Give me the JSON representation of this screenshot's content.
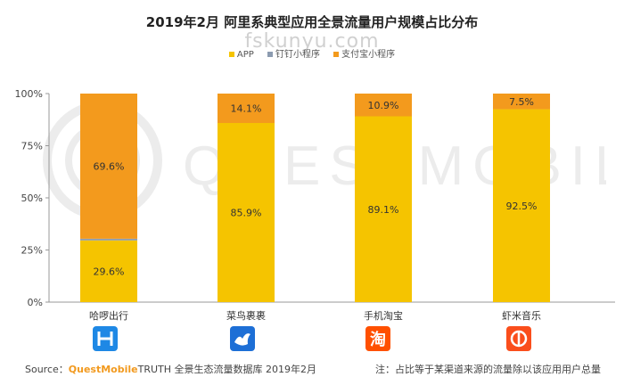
{
  "title": "2019年2月 阿里系典型应用全景流量用户规模占比分布",
  "watermark": "fskunyu.com",
  "background_logo_text": "QUESTMOBILE",
  "legend": [
    {
      "label": "APP",
      "color": "#f5c400"
    },
    {
      "label": "钉钉小程序",
      "color": "#8c9bb0"
    },
    {
      "label": "支付宝小程序",
      "color": "#f39a1d"
    }
  ],
  "chart_data": {
    "type": "bar",
    "stacked": true,
    "categories": [
      "哈啰出行",
      "菜鸟裹裹",
      "手机淘宝",
      "虾米音乐"
    ],
    "series": [
      {
        "name": "APP",
        "values": [
          29.6,
          85.9,
          89.1,
          92.5
        ],
        "color": "#f5c400"
      },
      {
        "name": "钉钉小程序",
        "values": [
          0.8,
          0,
          0,
          0
        ],
        "color": "#8c9bb0"
      },
      {
        "name": "支付宝小程序",
        "values": [
          69.6,
          14.1,
          10.9,
          7.5
        ],
        "color": "#f39a1d"
      }
    ],
    "data_labels": [
      {
        "app": "29.6%",
        "alipay": "69.6%"
      },
      {
        "app": "85.9%",
        "alipay": "14.1%"
      },
      {
        "app": "89.1%",
        "alipay": "10.9%"
      },
      {
        "app": "92.5%",
        "alipay": "7.5%"
      }
    ],
    "y_ticks": [
      "0%",
      "25%",
      "50%",
      "75%",
      "100%"
    ],
    "ylim": [
      0,
      100
    ],
    "grid": false,
    "legend_position": "top"
  },
  "icons": [
    "hellobike-icon",
    "cainiao-icon",
    "taobao-icon",
    "xiami-icon"
  ],
  "icon_glyphs": [
    "H",
    "",
    "淘",
    ""
  ],
  "source": {
    "prefix": "Source：",
    "brand": "QuestMobile",
    "rest": "TRUTH 全景生态流量数据库 2019年2月"
  },
  "note": "注：占比等于某渠道来源的流量除以该应用用户总量"
}
